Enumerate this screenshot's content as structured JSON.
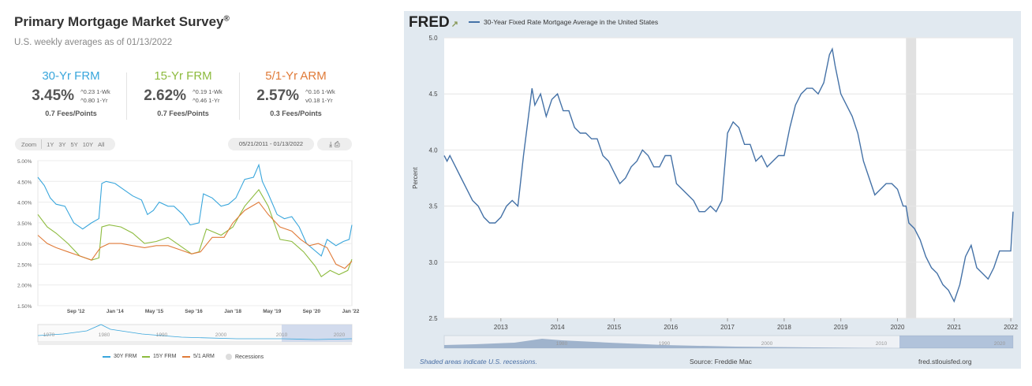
{
  "left_panel": {
    "title": "Primary Mortgage Market Survey",
    "title_mark": "®",
    "subtitle": "U.S. weekly averages as of 01/13/2022",
    "cards": [
      {
        "name": "30-Yr FRM",
        "rate": "3.45%",
        "chg_wk": "0.23 1-Wk",
        "chg_yr": "0.80 1-Yr",
        "fees": "0.7 Fees/Points",
        "color": "#39a6dc",
        "wk_arrow": "^",
        "yr_arrow": "^"
      },
      {
        "name": "15-Yr FRM",
        "rate": "2.62%",
        "chg_wk": "0.19 1-Wk",
        "chg_yr": "0.46 1-Yr",
        "fees": "0.7 Fees/Points",
        "color": "#8dbb3e",
        "wk_arrow": "^",
        "yr_arrow": "^"
      },
      {
        "name": "5/1-Yr ARM",
        "rate": "2.57%",
        "chg_wk": "0.16 1-Wk",
        "chg_yr": "0.18 1-Yr",
        "fees": "0.3 Fees/Points",
        "color": "#e07b39",
        "wk_arrow": "^",
        "yr_arrow": "v"
      }
    ],
    "zoom": {
      "label": "Zoom",
      "options": [
        "1Y",
        "3Y",
        "5Y",
        "10Y",
        "All"
      ]
    },
    "range_text": "05/21/2011 - 01/13/2022",
    "tools": "⤓ 🖶",
    "legend": [
      {
        "label": "30Y FRM",
        "color": "#39a6dc"
      },
      {
        "label": "15Y FRM",
        "color": "#8dbb3e"
      },
      {
        "label": "5/1 ARM",
        "color": "#e07b39"
      },
      {
        "label": "Recessions",
        "color": "#dddddd"
      }
    ]
  },
  "chart_data": [
    {
      "type": "line",
      "ylim": [
        1.5,
        5.0
      ],
      "y_ticks": [
        "5.00%",
        "4.50%",
        "4.00%",
        "3.50%",
        "3.00%",
        "2.50%",
        "2.00%",
        "1.50%"
      ],
      "y_tick_values": [
        5.0,
        4.5,
        4.0,
        3.5,
        3.0,
        2.5,
        2.0,
        1.5
      ],
      "xlim": [
        2011.38,
        2022.04
      ],
      "x_ticks": [
        "Sep '12",
        "Jan '14",
        "May '15",
        "Sep '16",
        "Jan '18",
        "May '19",
        "Sep '20",
        "Jan '22"
      ],
      "x_tick_values": [
        2012.67,
        2014.0,
        2015.33,
        2016.67,
        2018.0,
        2019.33,
        2020.67,
        2022.0
      ],
      "navigator_ticks": [
        "1970",
        "1980",
        "1990",
        "2000",
        "2010",
        "2020"
      ],
      "grid": true,
      "series": [
        {
          "name": "30Y FRM",
          "color": "#39a6dc",
          "x": [
            2011.38,
            2011.6,
            2011.8,
            2012.0,
            2012.3,
            2012.6,
            2012.9,
            2013.2,
            2013.45,
            2013.55,
            2013.7,
            2014.0,
            2014.3,
            2014.6,
            2014.9,
            2015.1,
            2015.3,
            2015.5,
            2015.8,
            2016.0,
            2016.3,
            2016.55,
            2016.85,
            2017.0,
            2017.3,
            2017.6,
            2017.85,
            2018.1,
            2018.4,
            2018.7,
            2018.88,
            2019.0,
            2019.2,
            2019.5,
            2019.75,
            2020.0,
            2020.25,
            2020.5,
            2020.75,
            2021.0,
            2021.2,
            2021.5,
            2021.75,
            2021.95,
            2022.04
          ],
          "y": [
            4.6,
            4.4,
            4.1,
            3.95,
            3.9,
            3.5,
            3.35,
            3.5,
            3.6,
            4.45,
            4.5,
            4.45,
            4.3,
            4.15,
            4.05,
            3.7,
            3.8,
            4.0,
            3.9,
            3.9,
            3.7,
            3.45,
            3.5,
            4.2,
            4.1,
            3.9,
            3.95,
            4.1,
            4.55,
            4.6,
            4.9,
            4.5,
            4.2,
            3.7,
            3.6,
            3.65,
            3.4,
            3.0,
            2.85,
            2.7,
            3.1,
            2.95,
            3.05,
            3.1,
            3.45
          ]
        },
        {
          "name": "15Y FRM",
          "color": "#8dbb3e",
          "x": [
            2011.38,
            2011.7,
            2012.0,
            2012.4,
            2012.8,
            2013.2,
            2013.45,
            2013.55,
            2013.8,
            2014.2,
            2014.6,
            2015.0,
            2015.4,
            2015.8,
            2016.2,
            2016.6,
            2016.85,
            2017.1,
            2017.6,
            2018.0,
            2018.4,
            2018.88,
            2019.2,
            2019.6,
            2020.0,
            2020.4,
            2020.8,
            2021.0,
            2021.3,
            2021.6,
            2021.9,
            2022.04
          ],
          "y": [
            3.7,
            3.4,
            3.25,
            3.0,
            2.7,
            2.6,
            2.65,
            3.4,
            3.45,
            3.4,
            3.25,
            3.0,
            3.05,
            3.15,
            2.95,
            2.75,
            2.8,
            3.35,
            3.2,
            3.4,
            3.9,
            4.3,
            3.9,
            3.1,
            3.05,
            2.8,
            2.45,
            2.2,
            2.35,
            2.25,
            2.35,
            2.62
          ]
        },
        {
          "name": "5/1 ARM",
          "color": "#e07b39",
          "x": [
            2011.38,
            2011.7,
            2012.0,
            2012.4,
            2012.8,
            2013.2,
            2013.5,
            2013.8,
            2014.2,
            2014.6,
            2015.0,
            2015.4,
            2015.8,
            2016.2,
            2016.6,
            2016.9,
            2017.3,
            2017.7,
            2018.0,
            2018.4,
            2018.88,
            2019.2,
            2019.6,
            2020.0,
            2020.3,
            2020.6,
            2020.9,
            2021.2,
            2021.5,
            2021.8,
            2022.04
          ],
          "y": [
            3.2,
            3.0,
            2.9,
            2.8,
            2.7,
            2.6,
            2.9,
            3.0,
            3.0,
            2.95,
            2.9,
            2.95,
            2.95,
            2.85,
            2.75,
            2.8,
            3.15,
            3.15,
            3.5,
            3.8,
            4.0,
            3.7,
            3.4,
            3.3,
            3.1,
            2.95,
            3.0,
            2.9,
            2.5,
            2.4,
            2.57
          ]
        }
      ]
    },
    {
      "type": "line",
      "title": "30-Year Fixed Rate Mortgage Average in the United States",
      "ylabel": "Percent",
      "ylim": [
        2.5,
        5.0
      ],
      "y_ticks": [
        "5.0",
        "4.5",
        "4.0",
        "3.5",
        "3.0",
        "2.5"
      ],
      "y_tick_values": [
        5.0,
        4.5,
        4.0,
        3.5,
        3.0,
        2.5
      ],
      "xlim": [
        2012.0,
        2022.04
      ],
      "x_ticks": [
        "2013",
        "2014",
        "2015",
        "2016",
        "2017",
        "2018",
        "2019",
        "2020",
        "2021",
        "2022"
      ],
      "x_tick_values": [
        2013,
        2014,
        2015,
        2016,
        2017,
        2018,
        2019,
        2020,
        2021,
        2022
      ],
      "navigator_ticks": [
        "1980",
        "1990",
        "2000",
        "2010",
        "2020"
      ],
      "recessions": [
        [
          2020.15,
          2020.33
        ]
      ],
      "grid": true,
      "series": [
        {
          "name": "30-Year Fixed Rate Mortgage Average in the United States",
          "color": "#4572a7",
          "x": [
            2012.0,
            2012.05,
            2012.1,
            2012.2,
            2012.3,
            2012.4,
            2012.5,
            2012.6,
            2012.7,
            2012.8,
            2012.9,
            2013.0,
            2013.1,
            2013.2,
            2013.3,
            2013.4,
            2013.5,
            2013.55,
            2013.6,
            2013.7,
            2013.8,
            2013.9,
            2014.0,
            2014.1,
            2014.2,
            2014.3,
            2014.4,
            2014.5,
            2014.6,
            2014.7,
            2014.8,
            2014.9,
            2015.0,
            2015.1,
            2015.2,
            2015.3,
            2015.4,
            2015.5,
            2015.6,
            2015.7,
            2015.8,
            2015.9,
            2016.0,
            2016.1,
            2016.2,
            2016.3,
            2016.4,
            2016.5,
            2016.6,
            2016.7,
            2016.8,
            2016.9,
            2017.0,
            2017.1,
            2017.2,
            2017.3,
            2017.4,
            2017.5,
            2017.6,
            2017.7,
            2017.8,
            2017.9,
            2018.0,
            2018.1,
            2018.2,
            2018.3,
            2018.4,
            2018.5,
            2018.6,
            2018.7,
            2018.8,
            2018.85,
            2018.9,
            2019.0,
            2019.1,
            2019.2,
            2019.3,
            2019.4,
            2019.5,
            2019.6,
            2019.7,
            2019.8,
            2019.9,
            2020.0,
            2020.1,
            2020.15,
            2020.2,
            2020.3,
            2020.4,
            2020.5,
            2020.6,
            2020.7,
            2020.8,
            2020.9,
            2021.0,
            2021.1,
            2021.2,
            2021.3,
            2021.4,
            2021.5,
            2021.6,
            2021.7,
            2021.8,
            2021.9,
            2022.0,
            2022.04
          ],
          "y": [
            3.95,
            3.9,
            3.95,
            3.85,
            3.75,
            3.65,
            3.55,
            3.5,
            3.4,
            3.35,
            3.35,
            3.4,
            3.5,
            3.55,
            3.5,
            3.95,
            4.35,
            4.55,
            4.4,
            4.5,
            4.3,
            4.45,
            4.5,
            4.35,
            4.35,
            4.2,
            4.15,
            4.15,
            4.1,
            4.1,
            3.95,
            3.9,
            3.8,
            3.7,
            3.75,
            3.85,
            3.9,
            4.0,
            3.95,
            3.85,
            3.85,
            3.95,
            3.95,
            3.7,
            3.65,
            3.6,
            3.55,
            3.45,
            3.45,
            3.5,
            3.45,
            3.55,
            4.15,
            4.25,
            4.2,
            4.05,
            4.05,
            3.9,
            3.95,
            3.85,
            3.9,
            3.95,
            3.95,
            4.2,
            4.4,
            4.5,
            4.55,
            4.55,
            4.5,
            4.6,
            4.85,
            4.9,
            4.75,
            4.5,
            4.4,
            4.3,
            4.15,
            3.9,
            3.75,
            3.6,
            3.65,
            3.7,
            3.7,
            3.65,
            3.5,
            3.5,
            3.35,
            3.3,
            3.2,
            3.05,
            2.95,
            2.9,
            2.8,
            2.75,
            2.65,
            2.8,
            3.05,
            3.15,
            2.95,
            2.9,
            2.85,
            2.95,
            3.1,
            3.1,
            3.1,
            3.45
          ]
        }
      ]
    }
  ],
  "right_panel": {
    "logo": "FRED",
    "source": "Source: Freddie Mac",
    "recession_note": "Shaded areas indicate U.S. recessions.",
    "site": "fred.stlouisfed.org"
  }
}
